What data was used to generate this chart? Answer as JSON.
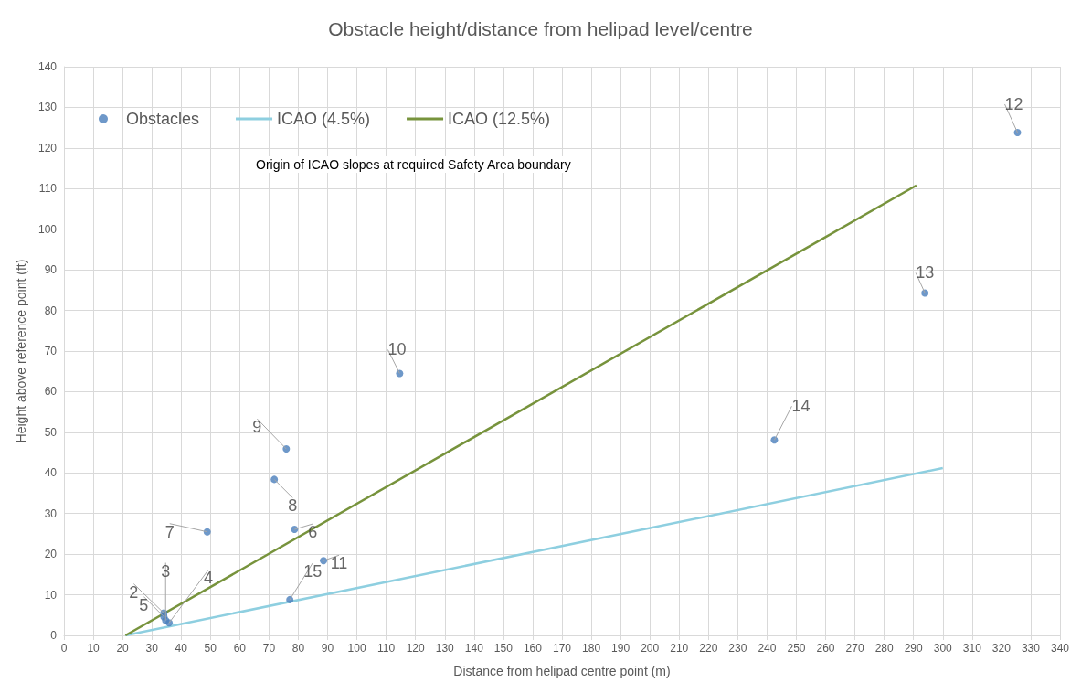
{
  "chart_data": {
    "type": "scatter",
    "title": "Obstacle height/distance from helipad level/centre",
    "xlabel": "Distance from helipad centre point (m)",
    "ylabel": "Height above reference point (ft)",
    "xlim": [
      0,
      340
    ],
    "xticks": [
      0,
      10,
      20,
      30,
      40,
      50,
      60,
      70,
      80,
      90,
      100,
      110,
      120,
      130,
      140,
      150,
      160,
      170,
      180,
      190,
      200,
      210,
      220,
      230,
      240,
      250,
      260,
      270,
      280,
      290,
      300,
      310,
      320,
      330,
      340
    ],
    "ylim": [
      0,
      140
    ],
    "yticks": [
      0,
      10,
      20,
      30,
      40,
      50,
      60,
      70,
      80,
      90,
      100,
      110,
      120,
      130,
      140
    ],
    "grid": true,
    "legend": "top left",
    "marker": "circle",
    "series": [
      {
        "name": "Obstacles",
        "color": "#4a7ebb",
        "x": [
          34.1,
          34.7,
          35.9,
          34.1,
          78.7,
          48.9,
          71.8,
          75.9,
          114.6,
          88.6,
          325.5,
          293.9,
          242.5,
          77.1
        ],
        "values": [
          5.5,
          3.7,
          3.1,
          4.6,
          26.1,
          25.5,
          38.4,
          45.9,
          64.5,
          18.4,
          123.8,
          84.3,
          48.1,
          8.8
        ]
      },
      {
        "name": "ICAO (4.5%)",
        "type": "line",
        "marker": "none",
        "color": "#8ecfe0",
        "x": [
          21,
          300
        ],
        "values": [
          0,
          41.2
        ]
      },
      {
        "name": "ICAO (12.5%)",
        "type": "line",
        "marker": "none",
        "color": "#77933c",
        "x": [
          21,
          291
        ],
        "values": [
          0,
          110.8
        ]
      }
    ],
    "annotations": [
      "Origin of ICAO slopes at required Safety Area boundary",
      {
        "text": "2",
        "x": 34.1,
        "y": 5.5
      },
      {
        "text": "3",
        "x": 34.7,
        "y": 3.7
      },
      {
        "text": "4",
        "x": 35.9,
        "y": 3.1
      },
      {
        "text": "5",
        "x": 34.1,
        "y": 4.6
      },
      {
        "text": "6",
        "x": 78.7,
        "y": 26.1
      },
      {
        "text": "7",
        "x": 48.9,
        "y": 25.5
      },
      {
        "text": "8",
        "x": 71.8,
        "y": 38.4
      },
      {
        "text": "9",
        "x": 75.9,
        "y": 45.9
      },
      {
        "text": "10",
        "x": 114.6,
        "y": 64.5
      },
      {
        "text": "11",
        "x": 88.6,
        "y": 18.4
      },
      {
        "text": "12",
        "x": 325.5,
        "y": 123.8
      },
      {
        "text": "13",
        "x": 293.9,
        "y": 84.3
      },
      {
        "text": "14",
        "x": 242.5,
        "y": 48.1
      },
      {
        "text": "15",
        "x": 77.1,
        "y": 8.8
      }
    ]
  }
}
